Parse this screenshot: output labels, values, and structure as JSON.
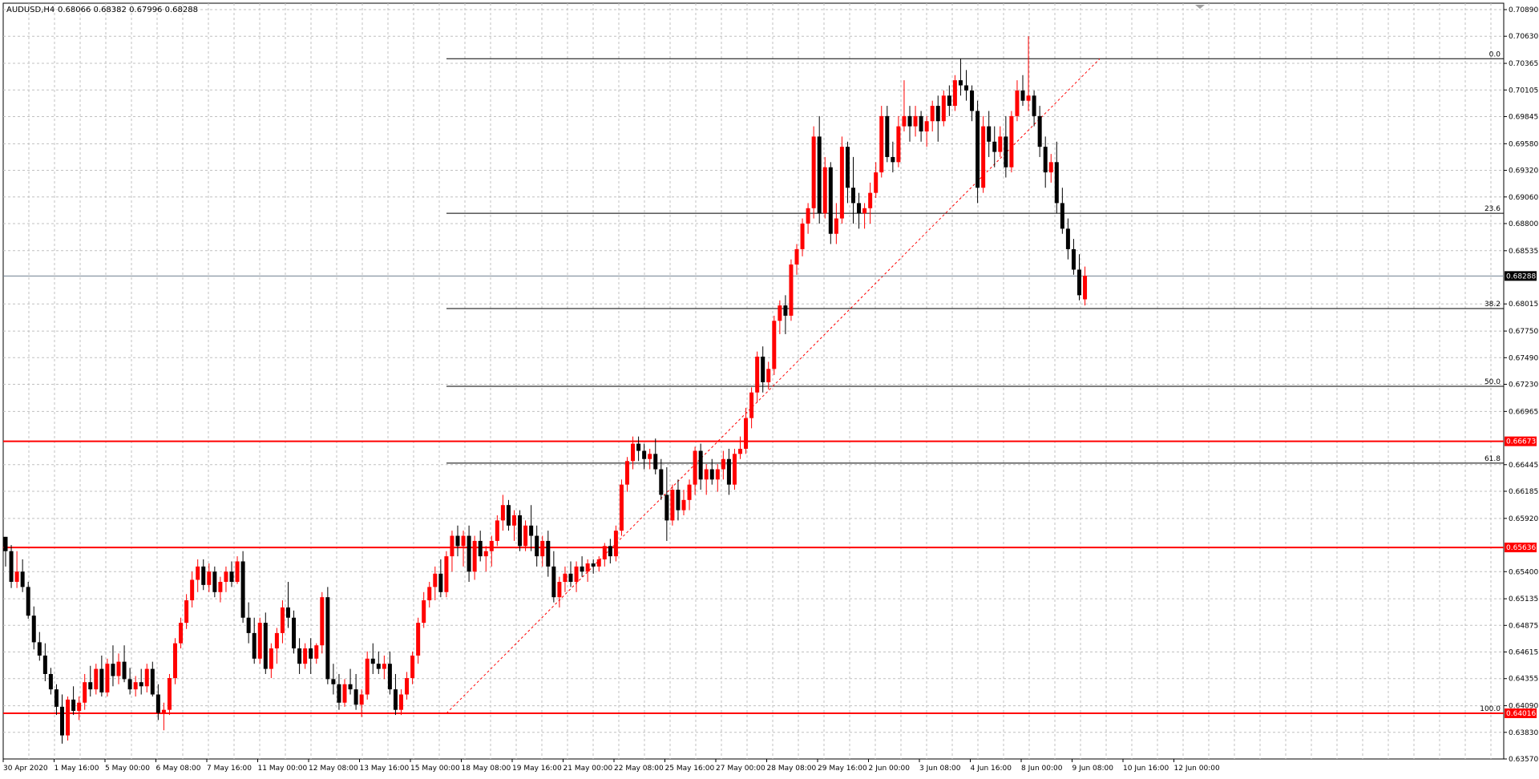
{
  "chart_window": {
    "symbol_label": "AUDUSD,H4",
    "ohlc_text": "0.68066 0.68382 0.67996 0.68288",
    "current_price_label": "0.68288"
  },
  "colors": {
    "background": "#ffffff",
    "grid": "#c0c0c0",
    "bull_candle": "#ff0000",
    "bear_candle": "#000000",
    "support_resistance": "#ff0000",
    "fibonacci": "#000000",
    "fib_trend": "#ff0000",
    "bid_line": "#708090",
    "price_tag_text": "#ffffff"
  },
  "chart_data": {
    "type": "candlestick",
    "ylim": [
      0.6357,
      0.7089
    ],
    "y_ticks": [
      "0.70890",
      "0.70630",
      "0.70365",
      "0.70105",
      "0.69845",
      "0.69580",
      "0.69320",
      "0.69060",
      "0.68800",
      "0.68535",
      "0.68015",
      "0.67750",
      "0.67490",
      "0.67230",
      "0.66965",
      "0.66445",
      "0.66185",
      "0.65920",
      "0.65400",
      "0.65135",
      "0.64875",
      "0.64615",
      "0.64355",
      "0.64090",
      "0.63830",
      "0.63570"
    ],
    "x_ticks": [
      "30 Apr 2020",
      "1 May 16:00",
      "5 May 00:00",
      "6 May 08:00",
      "7 May 16:00",
      "11 May 00:00",
      "12 May 08:00",
      "13 May 16:00",
      "15 May 00:00",
      "18 May 08:00",
      "19 May 16:00",
      "21 May 00:00",
      "22 May 08:00",
      "25 May 16:00",
      "27 May 00:00",
      "28 May 08:00",
      "29 May 16:00",
      "2 Jun 00:00",
      "3 Jun 08:00",
      "4 Jun 16:00",
      "8 Jun 00:00",
      "9 Jun 08:00",
      "10 Jun 16:00",
      "12 Jun 00:00"
    ],
    "horizontal_levels": [
      {
        "price": 0.66673,
        "label": "0.66673"
      },
      {
        "price": 0.65636,
        "label": "0.65636"
      },
      {
        "price": 0.64016,
        "label": "0.64016"
      }
    ],
    "fibonacci": {
      "high": 0.7041,
      "low": 0.64016,
      "levels": [
        {
          "label": "0.0",
          "price": 0.7041
        },
        {
          "label": "23.6",
          "price": 0.689
        },
        {
          "label": "38.2",
          "price": 0.6797
        },
        {
          "label": "50.0",
          "price": 0.6721
        },
        {
          "label": "61.8",
          "price": 0.6646
        },
        {
          "label": "100.0",
          "price": 0.64016
        }
      ]
    },
    "candles": [
      [
        0.6574,
        0.6574,
        0.6545,
        0.656
      ],
      [
        0.656,
        0.6566,
        0.6524,
        0.653
      ],
      [
        0.653,
        0.656,
        0.6524,
        0.654
      ],
      [
        0.654,
        0.6552,
        0.652,
        0.6525
      ],
      [
        0.6525,
        0.653,
        0.6494,
        0.6497
      ],
      [
        0.6497,
        0.6506,
        0.6464,
        0.6471
      ],
      [
        0.6471,
        0.6481,
        0.6453,
        0.6458
      ],
      [
        0.6458,
        0.647,
        0.6433,
        0.644
      ],
      [
        0.644,
        0.6446,
        0.642,
        0.6425
      ],
      [
        0.6425,
        0.643,
        0.64,
        0.6408
      ],
      [
        0.6408,
        0.642,
        0.6372,
        0.638
      ],
      [
        0.638,
        0.6418,
        0.6375,
        0.6415
      ],
      [
        0.6415,
        0.6428,
        0.64,
        0.6404
      ],
      [
        0.6404,
        0.6418,
        0.6395,
        0.6412
      ],
      [
        0.6412,
        0.644,
        0.6405,
        0.6432
      ],
      [
        0.6432,
        0.6448,
        0.6418,
        0.6425
      ],
      [
        0.6425,
        0.645,
        0.642,
        0.6445
      ],
      [
        0.6445,
        0.6458,
        0.6418,
        0.6422
      ],
      [
        0.6422,
        0.6455,
        0.6418,
        0.645
      ],
      [
        0.645,
        0.6468,
        0.6428,
        0.6438
      ],
      [
        0.6438,
        0.646,
        0.643,
        0.6452
      ],
      [
        0.6452,
        0.6468,
        0.6432,
        0.6435
      ],
      [
        0.6435,
        0.6446,
        0.642,
        0.6425
      ],
      [
        0.6425,
        0.6438,
        0.6418,
        0.6432
      ],
      [
        0.6432,
        0.6445,
        0.642,
        0.6428
      ],
      [
        0.6428,
        0.645,
        0.6422,
        0.6445
      ],
      [
        0.6445,
        0.6452,
        0.6418,
        0.642
      ],
      [
        0.642,
        0.643,
        0.6395,
        0.6402
      ],
      [
        0.6402,
        0.6412,
        0.6385,
        0.6405
      ],
      [
        0.6405,
        0.644,
        0.64,
        0.6436
      ],
      [
        0.6436,
        0.6475,
        0.643,
        0.647
      ],
      [
        0.647,
        0.6495,
        0.6465,
        0.649
      ],
      [
        0.649,
        0.6518,
        0.6484,
        0.6512
      ],
      [
        0.6512,
        0.654,
        0.6505,
        0.6532
      ],
      [
        0.6532,
        0.6552,
        0.652,
        0.6545
      ],
      [
        0.6545,
        0.6552,
        0.6522,
        0.6527
      ],
      [
        0.6527,
        0.6548,
        0.652,
        0.654
      ],
      [
        0.654,
        0.6545,
        0.6515,
        0.652
      ],
      [
        0.652,
        0.6535,
        0.651,
        0.653
      ],
      [
        0.653,
        0.6545,
        0.652,
        0.654
      ],
      [
        0.654,
        0.655,
        0.6525,
        0.653
      ],
      [
        0.653,
        0.6555,
        0.6528,
        0.655
      ],
      [
        0.655,
        0.656,
        0.649,
        0.6495
      ],
      [
        0.6495,
        0.651,
        0.647,
        0.648
      ],
      [
        0.648,
        0.6495,
        0.645,
        0.6455
      ],
      [
        0.6455,
        0.6495,
        0.645,
        0.649
      ],
      [
        0.649,
        0.65,
        0.644,
        0.6445
      ],
      [
        0.6445,
        0.647,
        0.6436,
        0.6465
      ],
      [
        0.6465,
        0.6485,
        0.645,
        0.648
      ],
      [
        0.648,
        0.6512,
        0.647,
        0.6505
      ],
      [
        0.6505,
        0.653,
        0.6485,
        0.6495
      ],
      [
        0.6495,
        0.6502,
        0.646,
        0.6465
      ],
      [
        0.6465,
        0.6475,
        0.644,
        0.645
      ],
      [
        0.645,
        0.647,
        0.6445,
        0.6465
      ],
      [
        0.6465,
        0.6475,
        0.644,
        0.6455
      ],
      [
        0.6455,
        0.647,
        0.645,
        0.6468
      ],
      [
        0.6468,
        0.652,
        0.646,
        0.6515
      ],
      [
        0.6515,
        0.6525,
        0.643,
        0.6435
      ],
      [
        0.6435,
        0.645,
        0.642,
        0.643
      ],
      [
        0.643,
        0.644,
        0.6405,
        0.6412
      ],
      [
        0.6412,
        0.6435,
        0.6408,
        0.643
      ],
      [
        0.643,
        0.6445,
        0.642,
        0.6425
      ],
      [
        0.6425,
        0.644,
        0.6405,
        0.641
      ],
      [
        0.641,
        0.6425,
        0.6398,
        0.642
      ],
      [
        0.642,
        0.6462,
        0.6415,
        0.6455
      ],
      [
        0.6455,
        0.647,
        0.644,
        0.645
      ],
      [
        0.645,
        0.6462,
        0.644,
        0.6445
      ],
      [
        0.6445,
        0.6458,
        0.6435,
        0.645
      ],
      [
        0.645,
        0.6462,
        0.642,
        0.6425
      ],
      [
        0.6425,
        0.644,
        0.64,
        0.6405
      ],
      [
        0.6405,
        0.6425,
        0.64,
        0.642
      ],
      [
        0.642,
        0.6442,
        0.6415,
        0.6436
      ],
      [
        0.6436,
        0.6462,
        0.643,
        0.6458
      ],
      [
        0.6458,
        0.6495,
        0.645,
        0.649
      ],
      [
        0.649,
        0.652,
        0.6485,
        0.6512
      ],
      [
        0.6512,
        0.653,
        0.6505,
        0.6525
      ],
      [
        0.6525,
        0.6545,
        0.6512,
        0.6538
      ],
      [
        0.6538,
        0.6552,
        0.6515,
        0.652
      ],
      [
        0.652,
        0.656,
        0.6515,
        0.6555
      ],
      [
        0.6555,
        0.658,
        0.654,
        0.6575
      ],
      [
        0.6575,
        0.6585,
        0.6555,
        0.6565
      ],
      [
        0.6565,
        0.658,
        0.6545,
        0.6575
      ],
      [
        0.6575,
        0.6585,
        0.653,
        0.654
      ],
      [
        0.654,
        0.6575,
        0.6532,
        0.657
      ],
      [
        0.657,
        0.658,
        0.655,
        0.6555
      ],
      [
        0.6555,
        0.6565,
        0.654,
        0.656
      ],
      [
        0.656,
        0.6575,
        0.6545,
        0.657
      ],
      [
        0.657,
        0.6595,
        0.6565,
        0.659
      ],
      [
        0.659,
        0.6615,
        0.658,
        0.6605
      ],
      [
        0.6605,
        0.661,
        0.658,
        0.6585
      ],
      [
        0.6585,
        0.66,
        0.657,
        0.6595
      ],
      [
        0.6595,
        0.66,
        0.656,
        0.6565
      ],
      [
        0.6565,
        0.659,
        0.656,
        0.6585
      ],
      [
        0.6585,
        0.6605,
        0.656,
        0.6575
      ],
      [
        0.6575,
        0.6585,
        0.6545,
        0.6555
      ],
      [
        0.6555,
        0.6575,
        0.6545,
        0.657
      ],
      [
        0.657,
        0.658,
        0.6535,
        0.6545
      ],
      [
        0.6545,
        0.656,
        0.651,
        0.6515
      ],
      [
        0.6515,
        0.6535,
        0.6505,
        0.653
      ],
      [
        0.653,
        0.6545,
        0.652,
        0.6538
      ],
      [
        0.6538,
        0.655,
        0.6525,
        0.653
      ],
      [
        0.653,
        0.655,
        0.652,
        0.6545
      ],
      [
        0.6545,
        0.6555,
        0.6535,
        0.654
      ],
      [
        0.654,
        0.6552,
        0.653,
        0.6548
      ],
      [
        0.6548,
        0.6552,
        0.6538,
        0.6545
      ],
      [
        0.6545,
        0.6555,
        0.654,
        0.6552
      ],
      [
        0.6552,
        0.6568,
        0.6545,
        0.6565
      ],
      [
        0.6565,
        0.6572,
        0.6548,
        0.6555
      ],
      [
        0.6555,
        0.6585,
        0.655,
        0.658
      ],
      [
        0.658,
        0.663,
        0.6575,
        0.6625
      ],
      [
        0.6625,
        0.6652,
        0.6618,
        0.6648
      ],
      [
        0.6648,
        0.6672,
        0.664,
        0.6665
      ],
      [
        0.6665,
        0.6672,
        0.6648,
        0.6658
      ],
      [
        0.6658,
        0.6665,
        0.664,
        0.665
      ],
      [
        0.665,
        0.666,
        0.664,
        0.6655
      ],
      [
        0.6655,
        0.667,
        0.6635,
        0.664
      ],
      [
        0.664,
        0.665,
        0.661,
        0.6615
      ],
      [
        0.6615,
        0.6642,
        0.657,
        0.659
      ],
      [
        0.659,
        0.6625,
        0.6585,
        0.662
      ],
      [
        0.662,
        0.663,
        0.659,
        0.66
      ],
      [
        0.66,
        0.662,
        0.6595,
        0.661
      ],
      [
        0.661,
        0.663,
        0.66,
        0.6625
      ],
      [
        0.6625,
        0.6662,
        0.6615,
        0.6658
      ],
      [
        0.6658,
        0.6665,
        0.662,
        0.663
      ],
      [
        0.663,
        0.6645,
        0.6615,
        0.664
      ],
      [
        0.664,
        0.665,
        0.6625,
        0.663
      ],
      [
        0.663,
        0.6645,
        0.6618,
        0.664
      ],
      [
        0.664,
        0.6658,
        0.663,
        0.665
      ],
      [
        0.665,
        0.666,
        0.6615,
        0.6625
      ],
      [
        0.6625,
        0.666,
        0.662,
        0.6655
      ],
      [
        0.6655,
        0.6672,
        0.665,
        0.666
      ],
      [
        0.666,
        0.67,
        0.6655,
        0.669
      ],
      [
        0.669,
        0.672,
        0.668,
        0.6715
      ],
      [
        0.6715,
        0.6755,
        0.6705,
        0.675
      ],
      [
        0.675,
        0.676,
        0.6715,
        0.6725
      ],
      [
        0.6725,
        0.6745,
        0.6718,
        0.6738
      ],
      [
        0.6738,
        0.679,
        0.6732,
        0.6785
      ],
      [
        0.6785,
        0.6805,
        0.6772,
        0.68
      ],
      [
        0.68,
        0.681,
        0.6772,
        0.679
      ],
      [
        0.679,
        0.6845,
        0.6785,
        0.684
      ],
      [
        0.684,
        0.686,
        0.683,
        0.6855
      ],
      [
        0.6855,
        0.6885,
        0.6848,
        0.688
      ],
      [
        0.688,
        0.69,
        0.687,
        0.6895
      ],
      [
        0.6895,
        0.6975,
        0.6885,
        0.6965
      ],
      [
        0.6965,
        0.6985,
        0.688,
        0.689
      ],
      [
        0.689,
        0.6945,
        0.6885,
        0.6935
      ],
      [
        0.6935,
        0.694,
        0.686,
        0.687
      ],
      [
        0.687,
        0.69,
        0.686,
        0.6885
      ],
      [
        0.6885,
        0.6965,
        0.688,
        0.6955
      ],
      [
        0.6955,
        0.696,
        0.69,
        0.6915
      ],
      [
        0.6915,
        0.6945,
        0.688,
        0.69
      ],
      [
        0.69,
        0.691,
        0.6875,
        0.689
      ],
      [
        0.689,
        0.69,
        0.6875,
        0.6895
      ],
      [
        0.6895,
        0.692,
        0.688,
        0.691
      ],
      [
        0.691,
        0.694,
        0.6905,
        0.693
      ],
      [
        0.693,
        0.6995,
        0.6925,
        0.6985
      ],
      [
        0.6985,
        0.6995,
        0.694,
        0.6945
      ],
      [
        0.6945,
        0.696,
        0.693,
        0.694
      ],
      [
        0.694,
        0.6985,
        0.6935,
        0.6975
      ],
      [
        0.6975,
        0.702,
        0.697,
        0.6985
      ],
      [
        0.6985,
        0.6995,
        0.696,
        0.6975
      ],
      [
        0.6975,
        0.6995,
        0.6965,
        0.6985
      ],
      [
        0.6985,
        0.699,
        0.696,
        0.697
      ],
      [
        0.697,
        0.6985,
        0.6955,
        0.698
      ],
      [
        0.698,
        0.7,
        0.697,
        0.6995
      ],
      [
        0.6995,
        0.7005,
        0.696,
        0.698
      ],
      [
        0.698,
        0.701,
        0.6975,
        0.7005
      ],
      [
        0.7005,
        0.7015,
        0.6985,
        0.6995
      ],
      [
        0.6995,
        0.7025,
        0.699,
        0.702
      ],
      [
        0.702,
        0.7041,
        0.7005,
        0.7015
      ],
      [
        0.7015,
        0.703,
        0.7,
        0.701
      ],
      [
        0.701,
        0.7015,
        0.698,
        0.699
      ],
      [
        0.699,
        0.7,
        0.69,
        0.6915
      ],
      [
        0.6915,
        0.6985,
        0.691,
        0.6975
      ],
      [
        0.6975,
        0.699,
        0.6945,
        0.696
      ],
      [
        0.696,
        0.6975,
        0.6935,
        0.695
      ],
      [
        0.695,
        0.6975,
        0.6945,
        0.6965
      ],
      [
        0.6965,
        0.6985,
        0.6925,
        0.6935
      ],
      [
        0.6935,
        0.699,
        0.693,
        0.6985
      ],
      [
        0.6985,
        0.702,
        0.698,
        0.701
      ],
      [
        0.701,
        0.7025,
        0.6995,
        0.7
      ],
      [
        0.7,
        0.7063,
        0.699,
        0.7005
      ],
      [
        0.7005,
        0.701,
        0.6975,
        0.6985
      ],
      [
        0.6985,
        0.6995,
        0.6945,
        0.6955
      ],
      [
        0.6955,
        0.6965,
        0.6915,
        0.693
      ],
      [
        0.693,
        0.6948,
        0.692,
        0.694
      ],
      [
        0.694,
        0.696,
        0.689,
        0.69
      ],
      [
        0.69,
        0.6915,
        0.687,
        0.6875
      ],
      [
        0.6875,
        0.6885,
        0.6845,
        0.6855
      ],
      [
        0.6855,
        0.6865,
        0.683,
        0.6835
      ],
      [
        0.6835,
        0.685,
        0.6805,
        0.681
      ],
      [
        0.6806,
        0.6838,
        0.68,
        0.6829
      ]
    ]
  }
}
